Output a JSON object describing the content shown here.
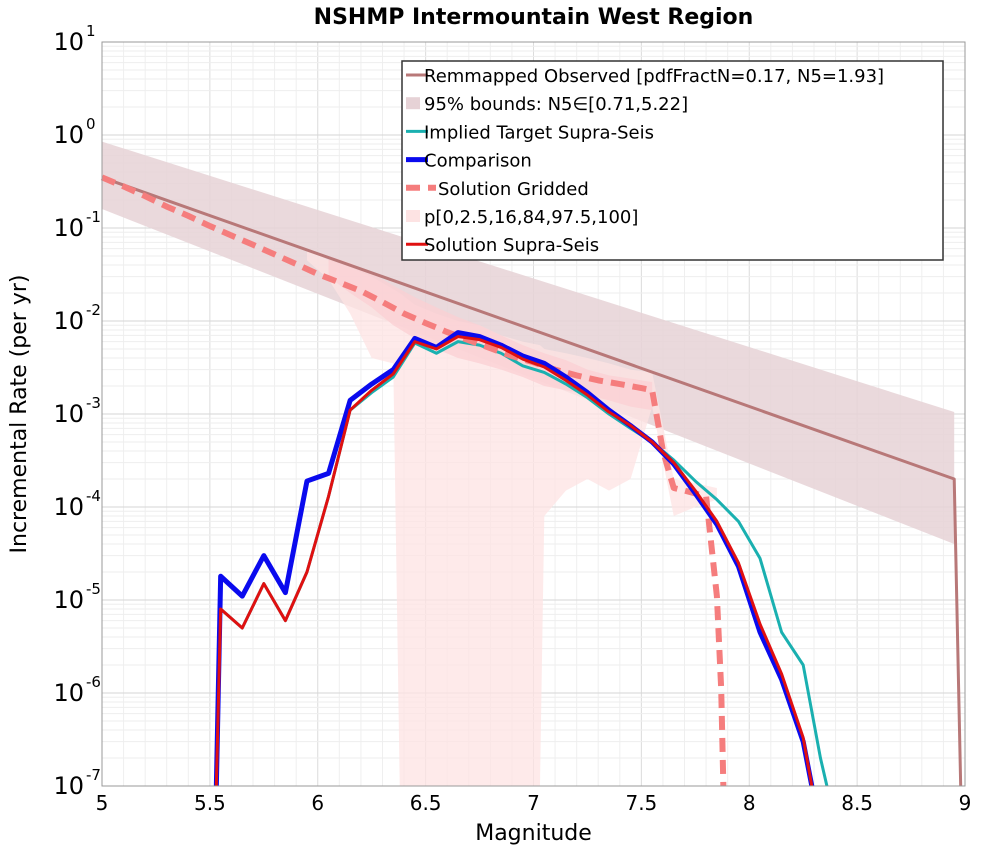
{
  "chart_data": {
    "type": "line",
    "title": "NSHMP Intermountain West Region",
    "xlabel": "Magnitude",
    "ylabel": "Incremental Rate (per yr)",
    "x_scale": "linear",
    "y_scale": "log",
    "xlim": [
      5,
      9
    ],
    "ylim": [
      1e-07,
      10
    ],
    "x_ticks": [
      "5",
      "5.5",
      "6",
      "6.5",
      "7",
      "7.5",
      "8",
      "8.5",
      "9"
    ],
    "x_tick_values": [
      5,
      5.5,
      6,
      6.5,
      7,
      7.5,
      8,
      8.5,
      9
    ],
    "y_ticks": [
      {
        "base": "10",
        "exp": "-7"
      },
      {
        "base": "10",
        "exp": "-6"
      },
      {
        "base": "10",
        "exp": "-5"
      },
      {
        "base": "10",
        "exp": "-4"
      },
      {
        "base": "10",
        "exp": "-3"
      },
      {
        "base": "10",
        "exp": "-2"
      },
      {
        "base": "10",
        "exp": "-1"
      },
      {
        "base": "10",
        "exp": "0"
      },
      {
        "base": "10",
        "exp": "1"
      }
    ],
    "y_tick_exponents": [
      -7,
      -6,
      -5,
      -4,
      -3,
      -2,
      -1,
      0,
      1
    ],
    "grid": true,
    "legend_position": "top-right",
    "legend": [
      {
        "label": "Remmapped Observed [pdfFractN=0.17, N5=1.93]",
        "style": "line",
        "color": "#b87878"
      },
      {
        "label": "95% bounds: N5∈[0.71,5.22]",
        "style": "band",
        "color": "#e6d2d6"
      },
      {
        "label": "Implied Target Supra-Seis",
        "style": "line",
        "color": "#1ab0b0"
      },
      {
        "label": "Comparison",
        "style": "thick",
        "color": "#0a0aee"
      },
      {
        "label": "Solution Gridded",
        "style": "dashed",
        "color": "#f57d7d"
      },
      {
        "label": "p[0,2.5,16,84,97.5,100]",
        "style": "band",
        "color": "#fde3e3"
      },
      {
        "label": "Solution Supra-Seis",
        "style": "line",
        "color": "#e01010"
      }
    ],
    "bands": [
      {
        "name": "95% bounds: N5∈[0.71,5.22]",
        "color": "#e6d2d6",
        "x": [
          5.0,
          8.95
        ],
        "lower": [
          0.16,
          4e-05
        ],
        "upper": [
          0.85,
          0.00105
        ]
      },
      {
        "name": "p[0,2.5,16,84,97.5,100]",
        "color": "#fde3e3",
        "x": [
          5.95,
          6.05,
          6.15,
          6.25,
          6.35,
          6.38,
          6.45,
          6.55,
          6.65,
          6.75,
          6.85,
          6.95,
          7.03,
          7.05,
          7.15,
          7.25,
          7.35,
          7.45,
          7.55,
          7.65,
          7.75,
          7.85
        ],
        "lower": [
          0.045,
          0.028,
          0.012,
          0.004,
          0.0035,
          1e-07,
          1e-07,
          1e-07,
          1e-07,
          1e-07,
          1e-07,
          1e-07,
          1e-07,
          8e-05,
          0.00015,
          0.0002,
          0.00015,
          0.0002,
          0.0012,
          8e-05,
          0.0001,
          0.00012
        ],
        "upper": [
          0.06,
          0.045,
          0.038,
          0.03,
          0.022,
          0.02,
          0.015,
          0.012,
          0.01,
          0.009,
          0.007,
          0.006,
          0.0055,
          0.005,
          0.0045,
          0.004,
          0.0035,
          0.003,
          0.0028,
          0.0002,
          0.00018,
          0.00016
        ]
      },
      {
        "name": "p[0,2.5,16,84,97.5,100] inner",
        "color": "#fbcfd3",
        "x": [
          6.05,
          6.15,
          6.25,
          6.35,
          6.45,
          6.55,
          6.65,
          6.75,
          6.85,
          6.95,
          7.05,
          7.15,
          7.25,
          7.35,
          7.45,
          7.55
        ],
        "lower": [
          0.03,
          0.02,
          0.014,
          0.009,
          0.0065,
          0.005,
          0.004,
          0.0035,
          0.003,
          0.0025,
          0.002,
          0.0018,
          0.0016,
          0.0014,
          0.0012,
          0.0011
        ],
        "upper": [
          0.05,
          0.042,
          0.033,
          0.024,
          0.018,
          0.014,
          0.011,
          0.009,
          0.007,
          0.0055,
          0.0045,
          0.0038,
          0.003,
          0.0026,
          0.0024,
          0.0022
        ]
      }
    ],
    "series": [
      {
        "name": "Remmapped Observed [pdfFractN=0.17, N5=1.93]",
        "color": "#b87878",
        "width": 3,
        "dash": "",
        "x": [
          5.0,
          8.95,
          8.98
        ],
        "y": [
          0.35,
          0.0002,
          1e-07
        ]
      },
      {
        "name": "Implied Target Supra-Seis",
        "color": "#1ab0b0",
        "width": 3,
        "dash": "",
        "x": [
          5.55,
          5.65,
          5.75,
          5.85,
          5.95,
          6.05,
          6.15,
          6.25,
          6.35,
          6.45,
          6.55,
          6.65,
          6.75,
          6.85,
          6.95,
          7.05,
          7.15,
          7.25,
          7.35,
          7.45,
          7.55,
          7.65,
          7.75,
          7.85,
          7.95,
          8.05,
          8.15,
          8.25,
          8.33,
          8.36
        ],
        "y": [
          8e-06,
          5e-06,
          1.5e-05,
          6e-06,
          2e-05,
          0.00013,
          0.0011,
          0.0017,
          0.0025,
          0.0058,
          0.0045,
          0.006,
          0.0055,
          0.0045,
          0.0033,
          0.0028,
          0.0021,
          0.0015,
          0.001,
          0.0007,
          0.0005,
          0.00032,
          0.00019,
          0.00012,
          7e-05,
          2.8e-05,
          4.5e-06,
          2e-06,
          2e-07,
          1e-07
        ]
      },
      {
        "name": "Solution Gridded",
        "color": "#f57d7d",
        "width": 6,
        "dash": "14,8",
        "x": [
          5.0,
          5.1,
          5.2,
          5.3,
          5.4,
          5.5,
          5.6,
          5.7,
          5.8,
          5.9,
          6.0,
          6.1,
          6.2,
          6.3,
          6.4,
          6.5,
          6.6,
          6.7,
          6.8,
          6.9,
          7.0,
          7.1,
          7.2,
          7.3,
          7.4,
          7.5,
          7.55,
          7.6,
          7.65,
          7.7,
          7.75,
          7.8,
          7.85,
          7.87,
          7.88
        ],
        "y": [
          0.35,
          0.28,
          0.22,
          0.17,
          0.135,
          0.105,
          0.083,
          0.066,
          0.052,
          0.041,
          0.032,
          0.026,
          0.021,
          0.016,
          0.012,
          0.0095,
          0.0076,
          0.0062,
          0.0051,
          0.0042,
          0.0036,
          0.003,
          0.0026,
          0.0023,
          0.0021,
          0.0019,
          0.0018,
          0.0004,
          0.00016,
          0.00015,
          0.00014,
          0.00013,
          1.1e-05,
          1.1e-06,
          1e-07
        ]
      },
      {
        "name": "Comparison",
        "color": "#0a0aee",
        "width": 5,
        "dash": "",
        "x": [
          5.53,
          5.55,
          5.65,
          5.75,
          5.85,
          5.95,
          6.05,
          6.15,
          6.25,
          6.35,
          6.45,
          6.55,
          6.65,
          6.75,
          6.85,
          6.95,
          7.05,
          7.15,
          7.25,
          7.35,
          7.45,
          7.55,
          7.65,
          7.75,
          7.85,
          7.95,
          8.05,
          8.15,
          8.25,
          8.29
        ],
        "y": [
          1e-07,
          1.8e-05,
          1.1e-05,
          3e-05,
          1.2e-05,
          0.00019,
          0.00023,
          0.0014,
          0.0021,
          0.003,
          0.0065,
          0.0052,
          0.0075,
          0.0068,
          0.0055,
          0.0042,
          0.0035,
          0.0025,
          0.0017,
          0.0011,
          0.00075,
          0.0005,
          0.00029,
          0.00014,
          6.5e-05,
          2.3e-05,
          4.5e-06,
          1.4e-06,
          3e-07,
          1e-07
        ]
      },
      {
        "name": "Solution Supra-Seis",
        "color": "#e01010",
        "width": 3,
        "dash": "",
        "x": [
          5.53,
          5.55,
          5.65,
          5.75,
          5.85,
          5.95,
          6.05,
          6.15,
          6.25,
          6.35,
          6.45,
          6.55,
          6.65,
          6.75,
          6.85,
          6.95,
          7.05,
          7.15,
          7.25,
          7.35,
          7.45,
          7.55,
          7.65,
          7.75,
          7.85,
          7.95,
          8.05,
          8.15,
          8.25,
          8.29
        ],
        "y": [
          1e-07,
          8e-06,
          5e-06,
          1.5e-05,
          6e-06,
          2e-05,
          0.00013,
          0.0011,
          0.0018,
          0.0027,
          0.006,
          0.005,
          0.0068,
          0.0063,
          0.0052,
          0.0039,
          0.0032,
          0.0023,
          0.0016,
          0.00105,
          0.00075,
          0.0005,
          0.0003,
          0.00015,
          7e-05,
          2.5e-05,
          5.5e-06,
          1.6e-06,
          3.3e-07,
          1e-07
        ]
      }
    ]
  }
}
